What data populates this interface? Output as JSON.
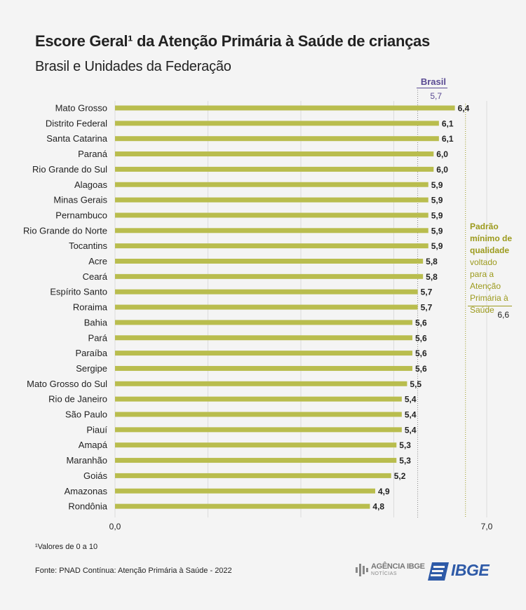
{
  "header": {
    "title": "Escore Geral¹ da Atenção Primária à Saúde de crianças",
    "subtitle": "Brasil e Unidades da Federação"
  },
  "reference": {
    "brasil_label": "Brasil",
    "brasil_value": "5,7",
    "padrao_title": "Padrão mínimo de qualidade",
    "padrao_text": "voltado para a Atenção Primária à Saúde",
    "padrao_value": "6,6"
  },
  "footer": {
    "footnote": "¹Valores de 0 a 10",
    "source": "Fonte: PNAD Contínua: Atenção Primária à Saúde - 2022",
    "agencia_logo_text": "AGÊNCIA IBGE",
    "agencia_logo_sub": "NOTÍCIAS",
    "ibge_logo_text": "IBGE"
  },
  "colors": {
    "bar": "#b9bd4e",
    "brasil": "#5a4a93",
    "padrao": "#9c9a1c",
    "logo_blue": "#2e5aa7"
  },
  "chart_data": {
    "type": "bar",
    "orientation": "horizontal",
    "title": "Escore Geral¹ da Atenção Primária à Saúde de crianças",
    "subtitle": "Brasil e Unidades da Federação",
    "categories": [
      "Mato Grosso",
      "Distrito Federal",
      "Santa Catarina",
      "Paraná",
      "Rio Grande do Sul",
      "Alagoas",
      "Minas Gerais",
      "Pernambuco",
      "Rio Grande do Norte",
      "Tocantins",
      "Acre",
      "Ceará",
      "Espírito Santo",
      "Roraima",
      "Bahia",
      "Pará",
      "Paraíba",
      "Sergipe",
      "Mato Grosso do Sul",
      "Rio de Janeiro",
      "São Paulo",
      "Piauí",
      "Amapá",
      "Maranhão",
      "Goiás",
      "Amazonas",
      "Rondônia"
    ],
    "values": [
      6.4,
      6.1,
      6.1,
      6.0,
      6.0,
      5.9,
      5.9,
      5.9,
      5.9,
      5.9,
      5.8,
      5.8,
      5.7,
      5.7,
      5.6,
      5.6,
      5.6,
      5.6,
      5.5,
      5.4,
      5.4,
      5.4,
      5.3,
      5.3,
      5.2,
      4.9,
      4.8
    ],
    "value_labels": [
      "6,4",
      "6,1",
      "6,1",
      "6,0",
      "6,0",
      "5,9",
      "5,9",
      "5,9",
      "5,9",
      "5,9",
      "5,8",
      "5,8",
      "5,7",
      "5,7",
      "5,6",
      "5,6",
      "5,6",
      "5,6",
      "5,5",
      "5,4",
      "5,4",
      "5,4",
      "5,3",
      "5,3",
      "5,2",
      "4,9",
      "4,8"
    ],
    "xlim": [
      0,
      7
    ],
    "x_tick_labels": [
      "0,0",
      "7,0"
    ],
    "reference_lines": [
      {
        "value": 5.7,
        "style": "dotted",
        "color": "#888888"
      },
      {
        "value": 6.6,
        "style": "dotted",
        "color": "#9c9a1c"
      }
    ],
    "grid": true
  }
}
